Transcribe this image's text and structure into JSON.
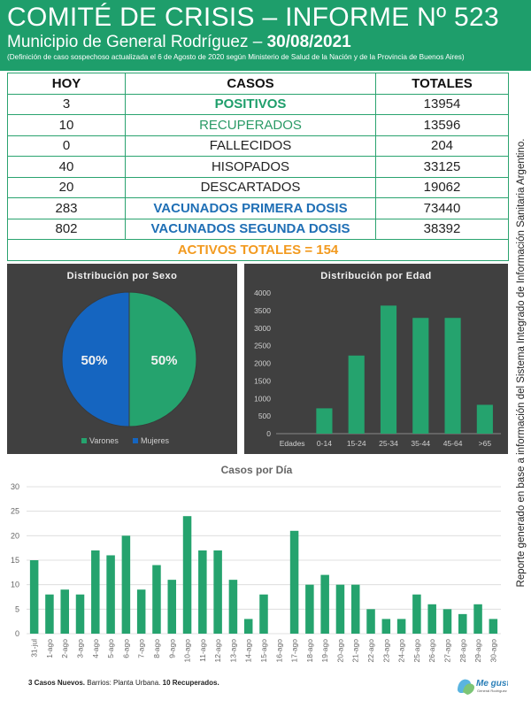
{
  "header": {
    "title": "COMITÉ DE CRISIS – INFORME Nº 523",
    "subtitle": "Municipio de General Rodríguez – ",
    "date": "30/08/2021",
    "note": "(Definición de caso sospechoso actualizada el 6 de Agosto de 2020 según Ministerio de Salud de la Nación y de la Provincia de Buenos Aires)"
  },
  "table": {
    "headers": [
      "HOY",
      "CASOS",
      "TOTALES"
    ],
    "rows": [
      {
        "hoy": "3",
        "casos": "POSITIVOS",
        "totales": "13954",
        "style": "green-bold"
      },
      {
        "hoy": "10",
        "casos": "RECUPERADOS",
        "totales": "13596",
        "style": "green"
      },
      {
        "hoy": "0",
        "casos": "FALLECIDOS",
        "totales": "204",
        "style": "plain"
      },
      {
        "hoy": "40",
        "casos": "HISOPADOS",
        "totales": "33125",
        "style": "plain"
      },
      {
        "hoy": "20",
        "casos": "DESCARTADOS",
        "totales": "19062",
        "style": "plain"
      },
      {
        "hoy": "283",
        "casos": "VACUNADOS PRIMERA DOSIS",
        "totales": "73440",
        "style": "blue"
      },
      {
        "hoy": "802",
        "casos": "VACUNADOS SEGUNDA DOSIS",
        "totales": "38392",
        "style": "blue"
      }
    ],
    "activos": "ACTIVOS TOTALES = 154"
  },
  "side_text": "Reporte generado en base a información del Sistema Integrado de Información Sanitaria Argentino.",
  "colors": {
    "green": "#1e9e6b",
    "bar_green": "#25a36e",
    "blue": "#1565c0",
    "orange": "#f29a1f",
    "panel_bg": "#404040"
  },
  "chart_data": [
    {
      "type": "pie",
      "title": "Distribución por Sexo",
      "labels": [
        "Varones",
        "Mujeres"
      ],
      "values": [
        50,
        50
      ],
      "value_labels": [
        "50%",
        "50%"
      ],
      "colors": [
        "#25a36e",
        "#1565c0"
      ],
      "legend": "bottom"
    },
    {
      "type": "bar",
      "title": "Distribución por Edad",
      "categories": [
        "Edades",
        "0-14",
        "15-24",
        "25-34",
        "35-44",
        "45-64",
        ">65"
      ],
      "values": [
        0,
        720,
        2220,
        3640,
        3290,
        3290,
        820
      ],
      "yticks": [
        "0",
        "500",
        "1000",
        "1500",
        "2000",
        "2500",
        "3000",
        "3500",
        "4000"
      ],
      "ylim": [
        0,
        4000
      ],
      "grid": false
    },
    {
      "type": "bar",
      "title": "Casos por Día",
      "categories": [
        "31-jul",
        "1-ago",
        "2-ago",
        "3-ago",
        "4-ago",
        "5-ago",
        "6-ago",
        "7-ago",
        "8-ago",
        "9-ago",
        "10-ago",
        "11-ago",
        "12-ago",
        "13-ago",
        "14-ago",
        "15-ago",
        "16-ago",
        "17-ago",
        "18-ago",
        "19-ago",
        "20-ago",
        "21-ago",
        "22-ago",
        "23-ago",
        "24-ago",
        "25-ago",
        "26-ago",
        "27-ago",
        "28-ago",
        "29-ago",
        "30-ago"
      ],
      "values": [
        15,
        8,
        9,
        8,
        17,
        16,
        20,
        9,
        14,
        11,
        24,
        17,
        17,
        11,
        3,
        8,
        0,
        21,
        10,
        12,
        10,
        10,
        5,
        3,
        3,
        8,
        6,
        5,
        4,
        6,
        3
      ],
      "yticks": [
        "0",
        "5",
        "10",
        "15",
        "20",
        "25",
        "30"
      ],
      "ylim": [
        0,
        30
      ],
      "grid": true
    }
  ],
  "footer": {
    "bold1": "3 Casos Nuevos.",
    "text1": " Barrios: Planta Urbana. ",
    "bold2": "10 Recuperados."
  },
  "logo": {
    "text": "Me gusta",
    "sub": "General Rodríguez"
  }
}
